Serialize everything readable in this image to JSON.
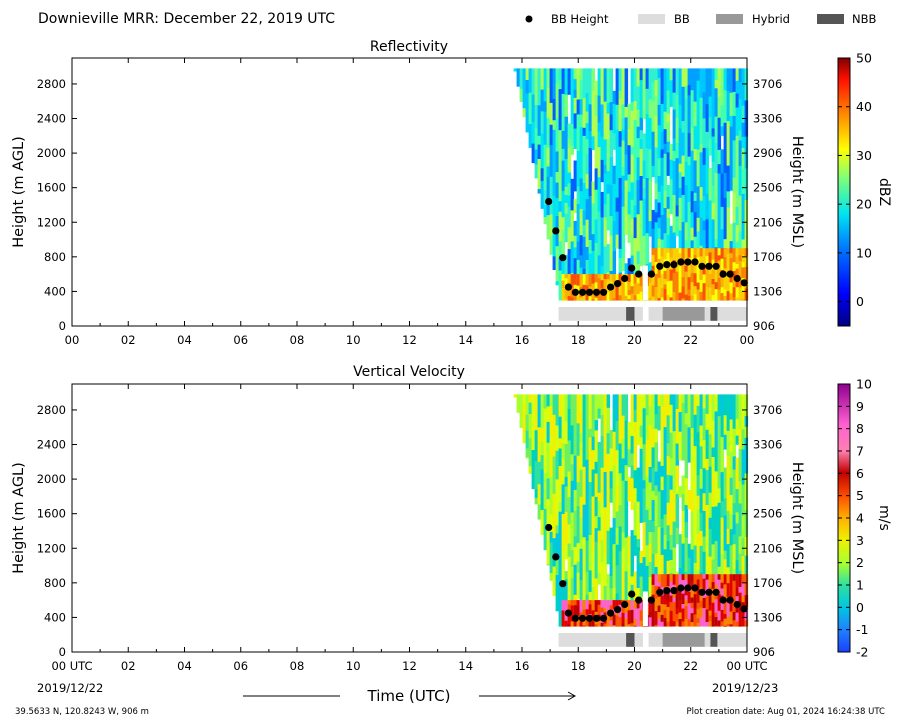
{
  "title": "Downieville MRR:  December 22, 2019 UTC",
  "legend": [
    {
      "label": "BB Height",
      "symbol": "dot",
      "color": "#000000"
    },
    {
      "label": "BB",
      "symbol": "box",
      "color": "#dddddd"
    },
    {
      "label": "Hybrid",
      "symbol": "box",
      "color": "#999999"
    },
    {
      "label": "NBB",
      "symbol": "box",
      "color": "#555555"
    }
  ],
  "footer": {
    "location": "39.5633 N, 120.8243 W, 906 m",
    "created": "Plot creation date: Aug 01, 2024 16:24:38 UTC",
    "date_left": "2019/12/22",
    "date_right": "2019/12/23",
    "xlabel": "Time (UTC)"
  },
  "chart_data": [
    {
      "type": "heatmap",
      "title": "Reflectivity",
      "ylabel": "Height (m AGL)",
      "ylabel_right": "Height (m MSL)",
      "xlim": [
        0,
        24
      ],
      "ylim": [
        0,
        3100
      ],
      "x_ticks": [
        "00",
        "02",
        "04",
        "06",
        "08",
        "10",
        "12",
        "14",
        "16",
        "18",
        "20",
        "22",
        "00"
      ],
      "y_ticks": [
        0,
        400,
        800,
        1200,
        1600,
        2000,
        2400,
        2800
      ],
      "y_ticks_right": [
        906,
        1306,
        1706,
        2106,
        2506,
        2906,
        3306,
        3706
      ],
      "colorbar": {
        "label": "dBZ",
        "range": [
          -5,
          50
        ],
        "ticks": [
          0,
          10,
          20,
          30,
          40,
          50
        ]
      },
      "data_start_hour": 15.7,
      "bb_height": {
        "x": [
          16.95,
          17.2,
          17.45,
          17.65,
          17.9,
          18.15,
          18.4,
          18.65,
          18.9,
          19.15,
          19.4,
          19.65,
          19.9,
          20.15,
          20.6,
          20.9,
          21.15,
          21.4,
          21.65,
          21.9,
          22.15,
          22.4,
          22.65,
          22.9,
          23.15,
          23.4,
          23.65,
          23.9
        ],
        "y": [
          1440,
          1100,
          790,
          450,
          390,
          390,
          390,
          390,
          390,
          450,
          490,
          550,
          670,
          600,
          600,
          690,
          710,
          710,
          740,
          740,
          740,
          690,
          690,
          690,
          600,
          600,
          550,
          500
        ]
      },
      "bb_type": [
        {
          "start": 17.3,
          "end": 19.7,
          "kind": "BB"
        },
        {
          "start": 19.7,
          "end": 20.0,
          "kind": "NBB"
        },
        {
          "start": 20.0,
          "end": 20.3,
          "kind": "BB"
        },
        {
          "start": 20.5,
          "end": 21.0,
          "kind": "BB"
        },
        {
          "start": 21.0,
          "end": 22.5,
          "kind": "Hybrid"
        },
        {
          "start": 22.5,
          "end": 22.7,
          "kind": "BB"
        },
        {
          "start": 22.7,
          "end": 22.95,
          "kind": "NBB"
        },
        {
          "start": 22.95,
          "end": 24.0,
          "kind": "BB"
        }
      ]
    },
    {
      "type": "heatmap",
      "title": "Vertical Velocity",
      "ylabel": "Height (m AGL)",
      "ylabel_right": "Height (m MSL)",
      "xlim": [
        0,
        24
      ],
      "ylim": [
        0,
        3100
      ],
      "x_ticks": [
        "00 UTC",
        "02",
        "04",
        "06",
        "08",
        "10",
        "12",
        "14",
        "16",
        "18",
        "20",
        "22",
        "00 UTC"
      ],
      "y_ticks": [
        0,
        400,
        800,
        1200,
        1600,
        2000,
        2400,
        2800
      ],
      "y_ticks_right": [
        906,
        1306,
        1706,
        2106,
        2506,
        2906,
        3306,
        3706
      ],
      "colorbar": {
        "label": "m/s",
        "range": [
          -2,
          10
        ],
        "ticks": [
          -2,
          -1,
          0,
          1,
          2,
          3,
          4,
          5,
          6,
          7,
          8,
          9,
          10
        ]
      },
      "data_start_hour": 15.7,
      "bb_height": {
        "x": [
          16.95,
          17.2,
          17.45,
          17.65,
          17.9,
          18.15,
          18.4,
          18.65,
          18.9,
          19.15,
          19.4,
          19.65,
          19.9,
          20.15,
          20.6,
          20.9,
          21.15,
          21.4,
          21.65,
          21.9,
          22.15,
          22.4,
          22.65,
          22.9,
          23.15,
          23.4,
          23.65,
          23.9
        ],
        "y": [
          1440,
          1100,
          790,
          450,
          390,
          390,
          390,
          390,
          390,
          450,
          490,
          550,
          670,
          600,
          600,
          690,
          710,
          710,
          740,
          740,
          740,
          690,
          690,
          690,
          600,
          600,
          550,
          500
        ]
      },
      "bb_type": [
        {
          "start": 17.3,
          "end": 19.7,
          "kind": "BB"
        },
        {
          "start": 19.7,
          "end": 20.0,
          "kind": "NBB"
        },
        {
          "start": 20.0,
          "end": 20.3,
          "kind": "BB"
        },
        {
          "start": 20.5,
          "end": 21.0,
          "kind": "BB"
        },
        {
          "start": 21.0,
          "end": 22.5,
          "kind": "Hybrid"
        },
        {
          "start": 22.5,
          "end": 22.7,
          "kind": "BB"
        },
        {
          "start": 22.7,
          "end": 22.95,
          "kind": "NBB"
        },
        {
          "start": 22.95,
          "end": 24.0,
          "kind": "BB"
        }
      ]
    }
  ]
}
